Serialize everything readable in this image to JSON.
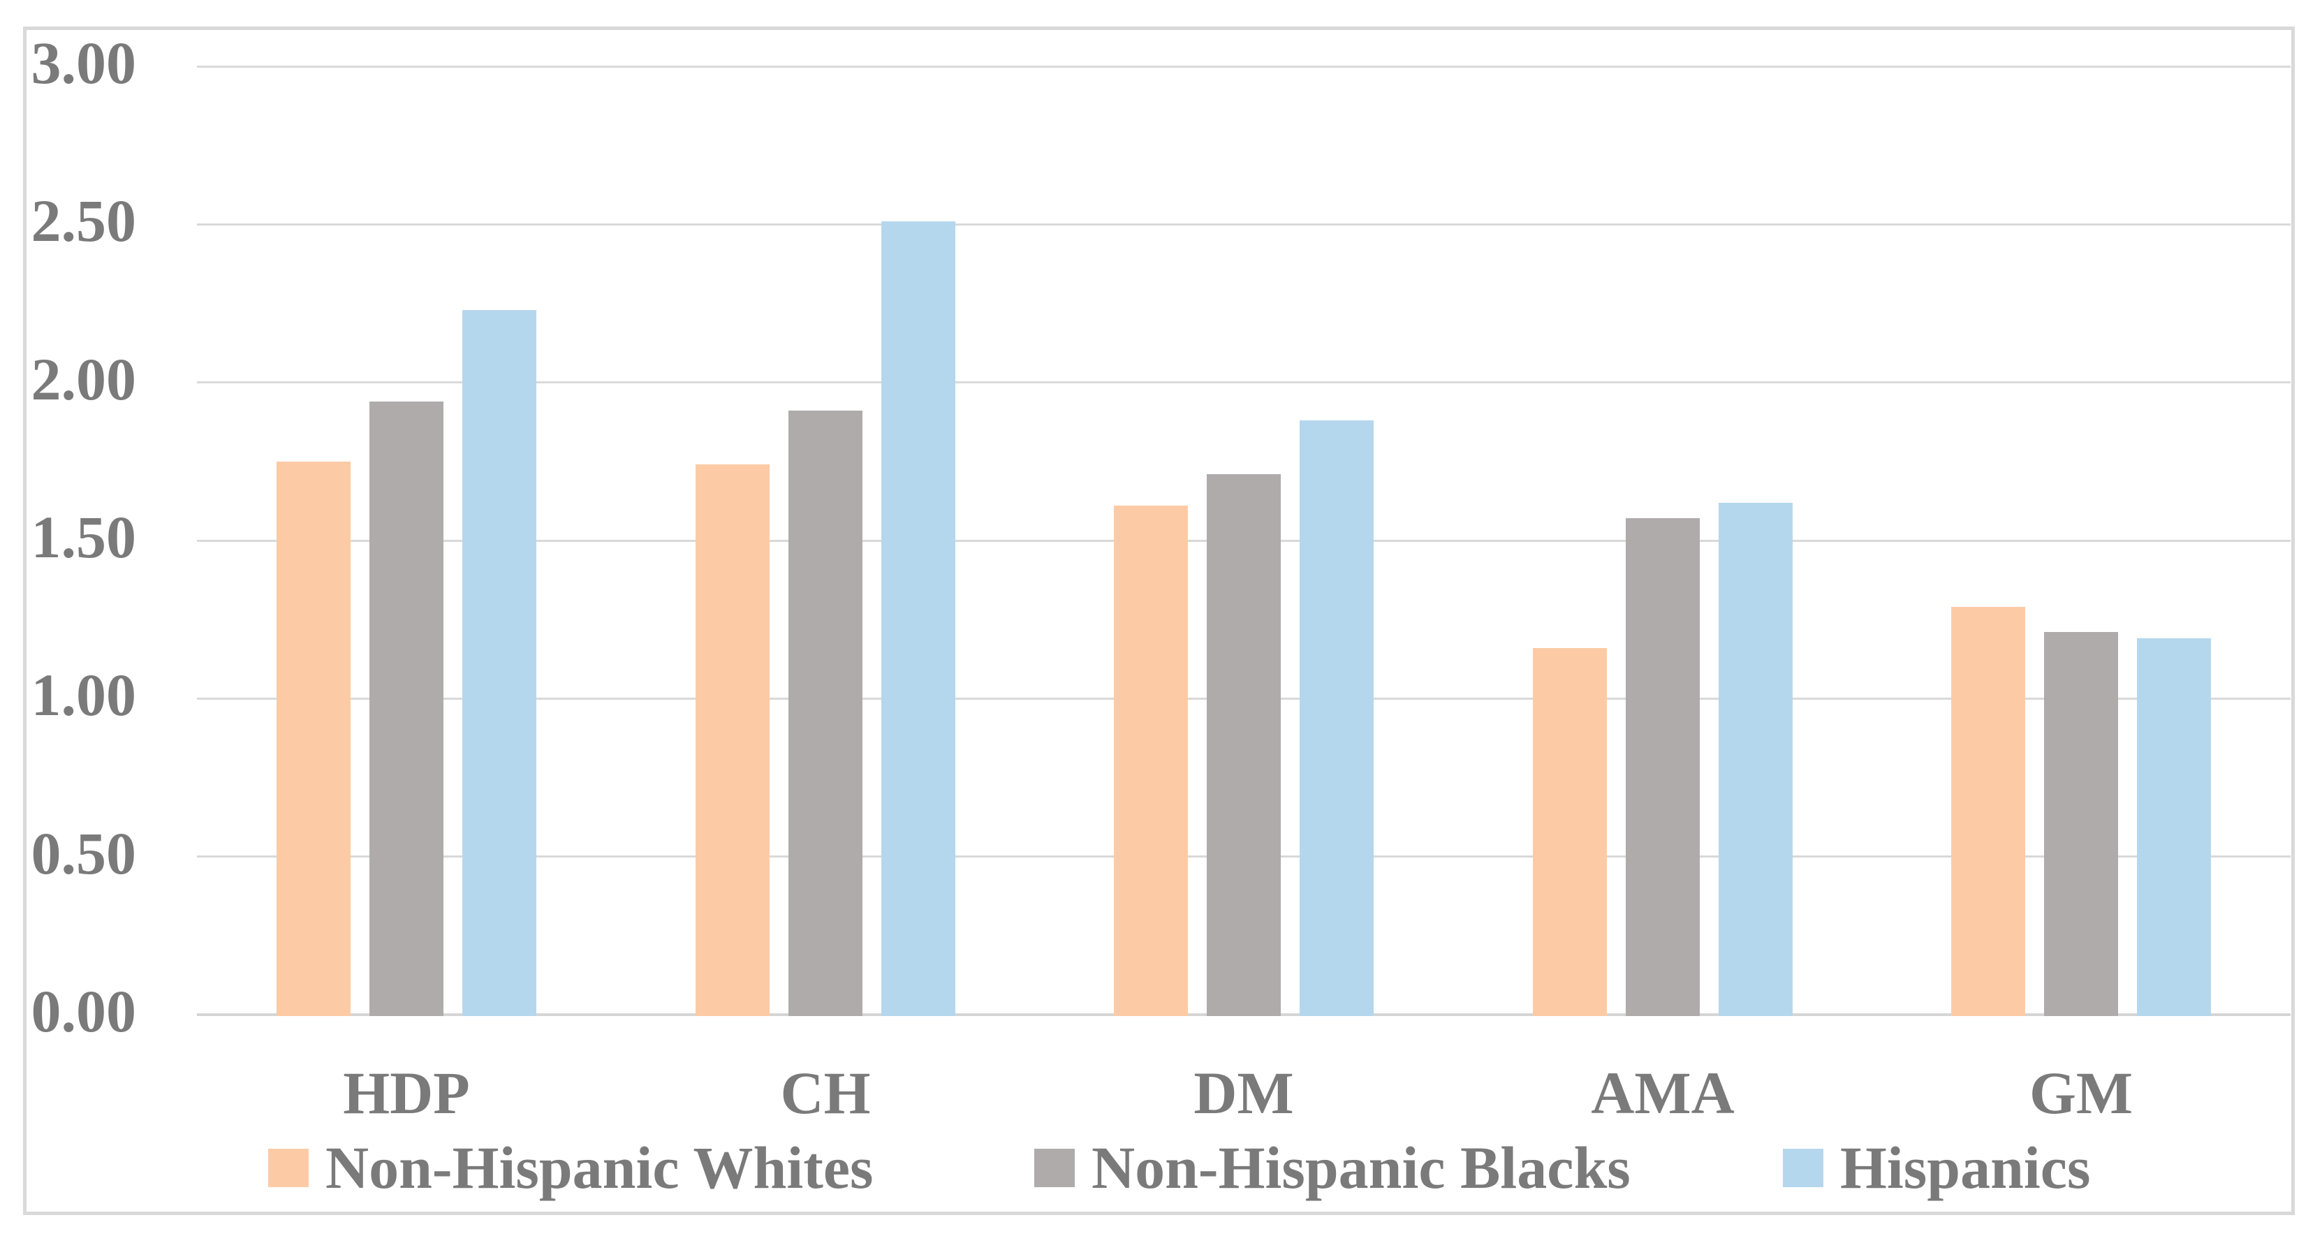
{
  "chart_data": {
    "type": "bar",
    "title": "",
    "xlabel": "",
    "ylabel": "",
    "categories": [
      "HDP",
      "CH",
      "DM",
      "AMA",
      "GM"
    ],
    "series": [
      {
        "name": "Non-Hispanic Whites",
        "color": "#FCCBA6",
        "values": [
          1.75,
          1.74,
          1.61,
          1.16,
          1.29
        ]
      },
      {
        "name": "Non-Hispanic Blacks",
        "color": "#AFABAA",
        "values": [
          1.94,
          1.91,
          1.71,
          1.57,
          1.21
        ]
      },
      {
        "name": "Hispanics",
        "color": "#B5D7EE",
        "values": [
          2.23,
          2.51,
          1.88,
          1.62,
          1.19
        ]
      }
    ],
    "y_axis": {
      "min": 0,
      "max": 3,
      "tick_step": 0.5,
      "ticks": [
        {
          "label": "3.00",
          "value": 3.0
        },
        {
          "label": "2.50",
          "value": 2.5
        },
        {
          "label": "2.00",
          "value": 2.0
        },
        {
          "label": "1.50",
          "value": 1.5
        },
        {
          "label": "1.00",
          "value": 1.0
        },
        {
          "label": "0.50",
          "value": 0.5
        },
        {
          "label": "0.00",
          "value": 0.0
        }
      ]
    },
    "grid": true,
    "legend_position": "bottom",
    "style": {
      "text_color": "#7A7A7A",
      "gridline_color": "#D9D9D9",
      "axis_line_color": "#D6D6D6",
      "chart_border_color": "#D9D9D9",
      "background": "#FFFFFF"
    }
  }
}
